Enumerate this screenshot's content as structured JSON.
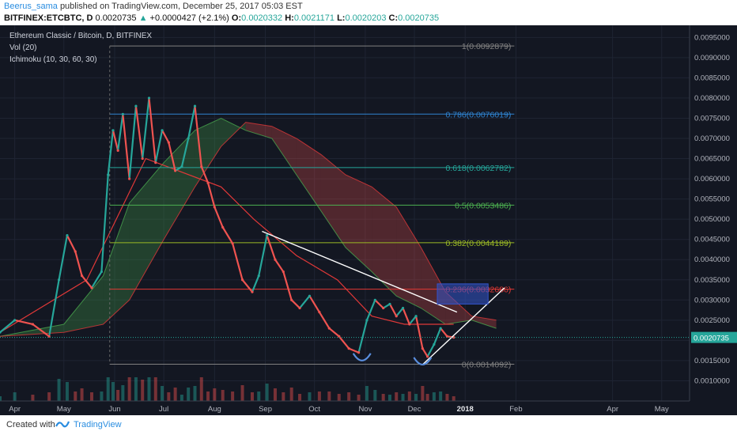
{
  "header": {
    "author": "Beerus_sama",
    "published_text": "published on TradingView.com, December 25, 2017 05:03 EST",
    "symbol": "BITFINEX:ETCBTC, D",
    "price": "0.0020735",
    "change_arrow": "▲",
    "change": "+0.0000427 (+2.1%)",
    "o_label": "O:",
    "o_value": "0.0020332",
    "h_label": "H:",
    "h_value": "0.0021171",
    "l_label": "L:",
    "l_value": "0.0020203",
    "c_label": "C:",
    "c_value": "0.0020735"
  },
  "legend": {
    "title": "Ethereum Classic / Bitcoin, D, BITFINEX",
    "vol": "Vol (20)",
    "ichimoku": "Ichimoku (10, 30, 60, 30)"
  },
  "footer": {
    "created_with": "Created with",
    "brand": "TradingView"
  },
  "colors": {
    "background": "#131722",
    "grid": "#1f2433",
    "up": "#26a69a",
    "down": "#ef5350",
    "conversion": "#3fa34d",
    "base": "#e03838",
    "price_tag": "#26a69a",
    "selection": "#3355cc"
  },
  "chart_data": {
    "type": "line",
    "title": "Ethereum Classic / Bitcoin, D, BITFINEX",
    "xlabel": "",
    "ylabel": "",
    "ylim": [
      0.0005,
      0.0098
    ],
    "x_ticks": [
      "Apr",
      "May",
      "Jun",
      "Jul",
      "Aug",
      "Sep",
      "Oct",
      "Nov",
      "Dec",
      "2018",
      "Feb",
      "Apr",
      "May"
    ],
    "y_ticks": [
      "0.0010000",
      "0.0015000",
      "0.0020000",
      "0.0025000",
      "0.0030000",
      "0.0035000",
      "0.0040000",
      "0.0045000",
      "0.0050000",
      "0.0055000",
      "0.0060000",
      "0.0065000",
      "0.0070000",
      "0.0075000",
      "0.0080000",
      "0.0085000",
      "0.0090000",
      "0.0095000"
    ],
    "last_price": "0.0020735",
    "last_value": 0.0020735,
    "price_dates": [
      "2017-03-23",
      "2017-04-01",
      "2017-04-12",
      "2017-04-22",
      "2017-04-28",
      "2017-05-03",
      "2017-05-08",
      "2017-05-12",
      "2017-05-18",
      "2017-05-24",
      "2017-05-28",
      "2017-05-31",
      "2017-06-03",
      "2017-06-06",
      "2017-06-10",
      "2017-06-14",
      "2017-06-18",
      "2017-06-22",
      "2017-06-26",
      "2017-06-30",
      "2017-07-04",
      "2017-07-08",
      "2017-07-12",
      "2017-07-16",
      "2017-07-20",
      "2017-07-24",
      "2017-07-28",
      "2017-08-01",
      "2017-08-06",
      "2017-08-12",
      "2017-08-18",
      "2017-08-24",
      "2017-08-28",
      "2017-09-02",
      "2017-09-07",
      "2017-09-12",
      "2017-09-17",
      "2017-09-22",
      "2017-09-28",
      "2017-10-04",
      "2017-10-10",
      "2017-10-16",
      "2017-10-22",
      "2017-10-28",
      "2017-11-02",
      "2017-11-07",
      "2017-11-12",
      "2017-11-16",
      "2017-11-20",
      "2017-11-24",
      "2017-11-28",
      "2017-12-02",
      "2017-12-06",
      "2017-12-09",
      "2017-12-13",
      "2017-12-17",
      "2017-12-21",
      "2017-12-25"
    ],
    "price_values": [
      0.0022,
      0.0025,
      0.0024,
      0.0021,
      0.0035,
      0.0046,
      0.0042,
      0.0036,
      0.0033,
      0.0037,
      0.0061,
      0.0072,
      0.0067,
      0.0076,
      0.006,
      0.0078,
      0.0065,
      0.008,
      0.0064,
      0.0072,
      0.0069,
      0.0062,
      0.0063,
      0.007,
      0.0078,
      0.0063,
      0.0059,
      0.0053,
      0.0048,
      0.0044,
      0.0035,
      0.0032,
      0.0036,
      0.0046,
      0.004,
      0.0037,
      0.003,
      0.0028,
      0.0031,
      0.0027,
      0.0023,
      0.0021,
      0.0018,
      0.0017,
      0.0025,
      0.003,
      0.0028,
      0.0029,
      0.0026,
      0.0028,
      0.0024,
      0.0026,
      0.0018,
      0.0016,
      0.0019,
      0.0023,
      0.0021,
      0.0020735
    ],
    "cloud_dates": [
      "2017-03-23",
      "2017-05-01",
      "2017-05-25",
      "2017-06-10",
      "2017-07-01",
      "2017-07-20",
      "2017-08-05",
      "2017-08-20",
      "2017-09-05",
      "2017-09-20",
      "2017-10-05",
      "2017-10-20",
      "2017-11-05",
      "2017-11-20",
      "2017-12-05",
      "2017-12-20",
      "2018-01-05",
      "2018-01-20"
    ],
    "cloud_span_a": [
      0.0021,
      0.0024,
      0.0036,
      0.0054,
      0.0064,
      0.0072,
      0.0075,
      0.0072,
      0.007,
      0.0061,
      0.0052,
      0.0043,
      0.0037,
      0.0031,
      0.0028,
      0.0024,
      0.0025,
      0.0023
    ],
    "cloud_span_b": [
      0.0021,
      0.0022,
      0.0024,
      0.003,
      0.0045,
      0.0058,
      0.0068,
      0.0074,
      0.0073,
      0.007,
      0.0066,
      0.0061,
      0.0058,
      0.0053,
      0.0043,
      0.0032,
      0.0026,
      0.0025
    ],
    "baseline_dates": [
      "2017-03-23",
      "2017-05-15",
      "2017-06-20",
      "2017-08-05",
      "2017-08-25",
      "2017-09-20",
      "2017-10-15",
      "2017-11-05",
      "2017-11-25",
      "2017-12-25"
    ],
    "baseline_values": [
      0.0022,
      0.0035,
      0.0065,
      0.0058,
      0.005,
      0.0041,
      0.0035,
      0.0026,
      0.0024,
      0.0024
    ],
    "fib_levels": [
      {
        "label": "1(0.0092879)",
        "value": 0.0092879,
        "color": "#808080"
      },
      {
        "label": "0.786(0.0076019)",
        "value": 0.0076019,
        "color": "#2f83d0"
      },
      {
        "label": "0.618(0.0062782)",
        "value": 0.0062782,
        "color": "#26a69a"
      },
      {
        "label": "0.5(0.0053486)",
        "value": 0.0053486,
        "color": "#4caf50"
      },
      {
        "label": "0.382(0.0044189)",
        "value": 0.0044189,
        "color": "#9ab825"
      },
      {
        "label": "0.236(0.0032686)",
        "value": 0.0032686,
        "color": "#e53935"
      },
      {
        "label": "0(0.0014092)",
        "value": 0.0014092,
        "color": "#808080"
      }
    ],
    "trendline_dates": [
      "2017-08-30",
      "2017-12-27"
    ],
    "trendline_values": [
      0.0047,
      0.0027
    ],
    "arrow_dates": [
      "2017-12-06",
      "2018-01-25"
    ],
    "arrow_values": [
      0.0014,
      0.0033
    ],
    "target_box": {
      "dates": [
        "2017-12-15",
        "2018-01-15"
      ],
      "values": [
        0.0029,
        0.0034
      ]
    },
    "bottoms": [
      {
        "date": "2017-10-30",
        "value": 0.0016
      },
      {
        "date": "2017-12-06",
        "value": 0.0015
      }
    ]
  }
}
